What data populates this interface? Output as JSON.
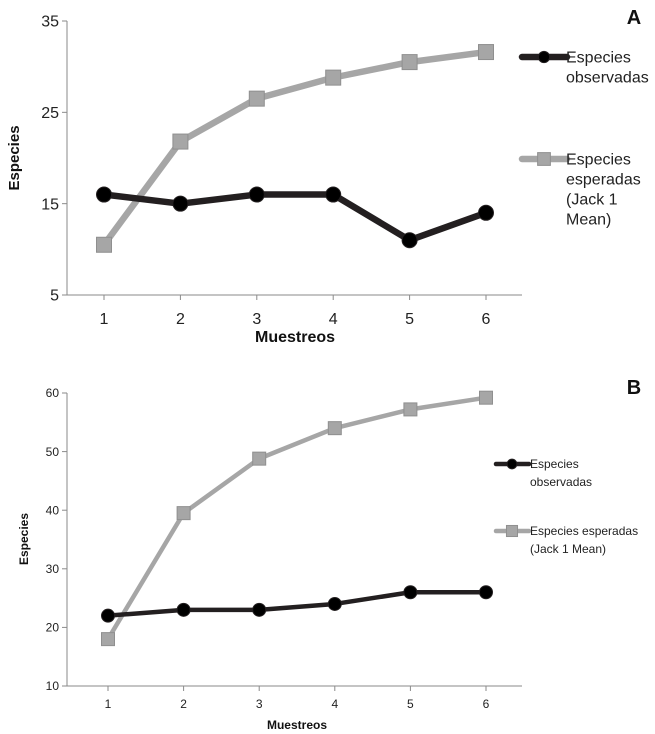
{
  "chart_data": [
    {
      "type": "line",
      "panel_label": "A",
      "x": [
        1,
        2,
        3,
        4,
        5,
        6
      ],
      "xlabel": "Muestreos",
      "ylabel": "Especies",
      "ylim": [
        5,
        35
      ],
      "yticks": [
        5,
        15,
        25,
        35
      ],
      "grid": false,
      "legend_position": "right",
      "series": [
        {
          "name": "Especies observadas",
          "legend_lines": [
            "Especies",
            "observadas"
          ],
          "color": "#231f20",
          "marker": "circle",
          "values": [
            16,
            15,
            16,
            16,
            11,
            14
          ]
        },
        {
          "name": "Especies esperadas (Jack 1 Mean)",
          "legend_lines": [
            "Especies",
            "esperadas",
            "(Jack 1",
            "Mean)"
          ],
          "color": "#a6a6a6",
          "marker": "square",
          "values": [
            10.5,
            21.8,
            26.5,
            28.8,
            30.5,
            31.6
          ]
        }
      ]
    },
    {
      "type": "line",
      "panel_label": "B",
      "x": [
        1,
        2,
        3,
        4,
        5,
        6
      ],
      "xlabel": "Muestreos",
      "ylabel": "Especies",
      "ylim": [
        10,
        60
      ],
      "yticks": [
        10,
        20,
        30,
        40,
        50,
        60
      ],
      "grid": false,
      "legend_position": "right",
      "series": [
        {
          "name": "Especies observadas",
          "legend_lines": [
            "Especies",
            "observadas"
          ],
          "color": "#231f20",
          "marker": "circle",
          "values": [
            22,
            23,
            23,
            24,
            26,
            26
          ]
        },
        {
          "name": "Especies esperadas (Jack 1 Mean)",
          "legend_lines": [
            "Especies esperadas",
            "(Jack 1 Mean)"
          ],
          "color": "#a6a6a6",
          "marker": "square",
          "values": [
            18,
            39.5,
            48.8,
            54,
            57.2,
            59.2
          ]
        }
      ]
    }
  ]
}
